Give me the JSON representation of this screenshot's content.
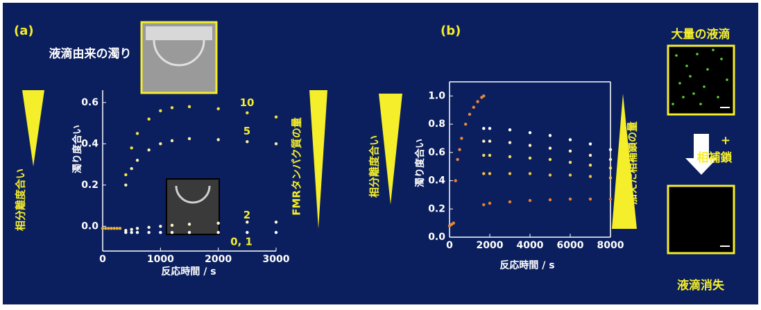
{
  "chart_data": [
    {
      "type": "scatter",
      "panel_label": "(a)",
      "xlabel": "反応時間 / s",
      "ylabel": "濁り度合い",
      "annotations": [
        "液滴由来の濁り",
        "相分離度合い",
        "FMRタンパク質の量"
      ],
      "xlim": [
        0,
        3000
      ],
      "xticks": [
        0,
        1000,
        2000,
        3000
      ],
      "ylim": [
        -0.12,
        0.66
      ],
      "yticks": [
        {
          "value": 0,
          "label": "0.0"
        },
        0.2,
        0.4,
        0.6
      ],
      "frame": false,
      "series": [
        {
          "color": "#e8b040",
          "x": [
            0,
            50,
            100,
            150,
            200,
            250,
            300
          ],
          "values": [
            -0.01,
            -0.01,
            -0.01,
            -0.01,
            -0.01,
            -0.01,
            -0.01
          ]
        },
        {
          "name": "10",
          "color": "#f2e53a",
          "x": [
            400,
            500,
            600,
            800,
            1000,
            1200,
            1500,
            2000,
            2500,
            3000
          ],
          "values": [
            0.25,
            0.38,
            0.45,
            0.52,
            0.56,
            0.575,
            0.58,
            0.57,
            0.55,
            0.53
          ]
        },
        {
          "name": "5",
          "color": "#f7f0a8",
          "x": [
            400,
            500,
            600,
            800,
            1000,
            1200,
            1500,
            2000,
            2500,
            3000
          ],
          "values": [
            0.2,
            0.28,
            0.32,
            0.37,
            0.4,
            0.415,
            0.425,
            0.42,
            0.41,
            0.4
          ]
        },
        {
          "name": "2",
          "color": "#fff8d0",
          "x": [
            400,
            500,
            600,
            800,
            1000,
            1200,
            1500,
            2000,
            2500,
            3000
          ],
          "values": [
            -0.02,
            -0.015,
            -0.01,
            -0.005,
            0,
            0.005,
            0.01,
            0.015,
            0.02,
            0.02
          ]
        },
        {
          "name": "0, 1",
          "color": "#ffffff",
          "x": [
            400,
            500,
            600,
            800,
            1000,
            1200,
            1500,
            2000,
            2500,
            3000
          ],
          "values": [
            -0.03,
            -0.03,
            -0.03,
            -0.03,
            -0.03,
            -0.03,
            -0.03,
            -0.03,
            -0.03,
            -0.03
          ]
        }
      ]
    },
    {
      "type": "scatter",
      "panel_label": "(b)",
      "xlabel": "反応時間 / s",
      "ylabel": "濁り度合い",
      "annotations": [
        "相分離度合い",
        "加えた相補鎖の量",
        "大量の液滴",
        "+",
        "相補鎖",
        "液滴消失"
      ],
      "xlim": [
        0,
        8000
      ],
      "xticks": [
        0,
        2000,
        4000,
        6000,
        8000
      ],
      "ylim": [
        0,
        1.1
      ],
      "yticks": [
        {
          "value": 0,
          "label": "0.0"
        },
        0.2,
        0.4,
        0.6,
        0.8,
        {
          "value": 1,
          "label": "1.0"
        }
      ],
      "frame": true,
      "series": [
        {
          "color": "#e8883a",
          "x": [
            0,
            100,
            200,
            300,
            400,
            500,
            600,
            800,
            1000,
            1200,
            1400,
            1600,
            1700
          ],
          "values": [
            0.08,
            0.09,
            0.1,
            0.4,
            0.55,
            0.62,
            0.7,
            0.8,
            0.87,
            0.92,
            0.96,
            0.99,
            1.0
          ]
        },
        {
          "color": "#ffffff",
          "x": [
            1700,
            2000,
            3000,
            4000,
            5000,
            6000,
            7000,
            8000
          ],
          "values": [
            0.77,
            0.77,
            0.76,
            0.74,
            0.72,
            0.69,
            0.66,
            0.62
          ]
        },
        {
          "color": "#fff0c0",
          "x": [
            1700,
            2000,
            3000,
            4000,
            5000,
            6000,
            7000,
            8000
          ],
          "values": [
            0.68,
            0.68,
            0.67,
            0.65,
            0.63,
            0.61,
            0.58,
            0.55
          ]
        },
        {
          "color": "#f5e060",
          "x": [
            1700,
            2000,
            3000,
            4000,
            5000,
            6000,
            7000,
            8000
          ],
          "values": [
            0.58,
            0.58,
            0.57,
            0.56,
            0.55,
            0.53,
            0.51,
            0.49
          ]
        },
        {
          "color": "#f0c040",
          "x": [
            1700,
            2000,
            3000,
            4000,
            5000,
            6000,
            7000,
            8000
          ],
          "values": [
            0.45,
            0.45,
            0.45,
            0.45,
            0.44,
            0.44,
            0.43,
            0.42
          ]
        },
        {
          "color": "#e88030",
          "x": [
            1700,
            2000,
            3000,
            4000,
            5000,
            6000,
            7000,
            8000
          ],
          "values": [
            0.23,
            0.24,
            0.25,
            0.26,
            0.265,
            0.27,
            0.27,
            0.27
          ]
        }
      ]
    }
  ]
}
